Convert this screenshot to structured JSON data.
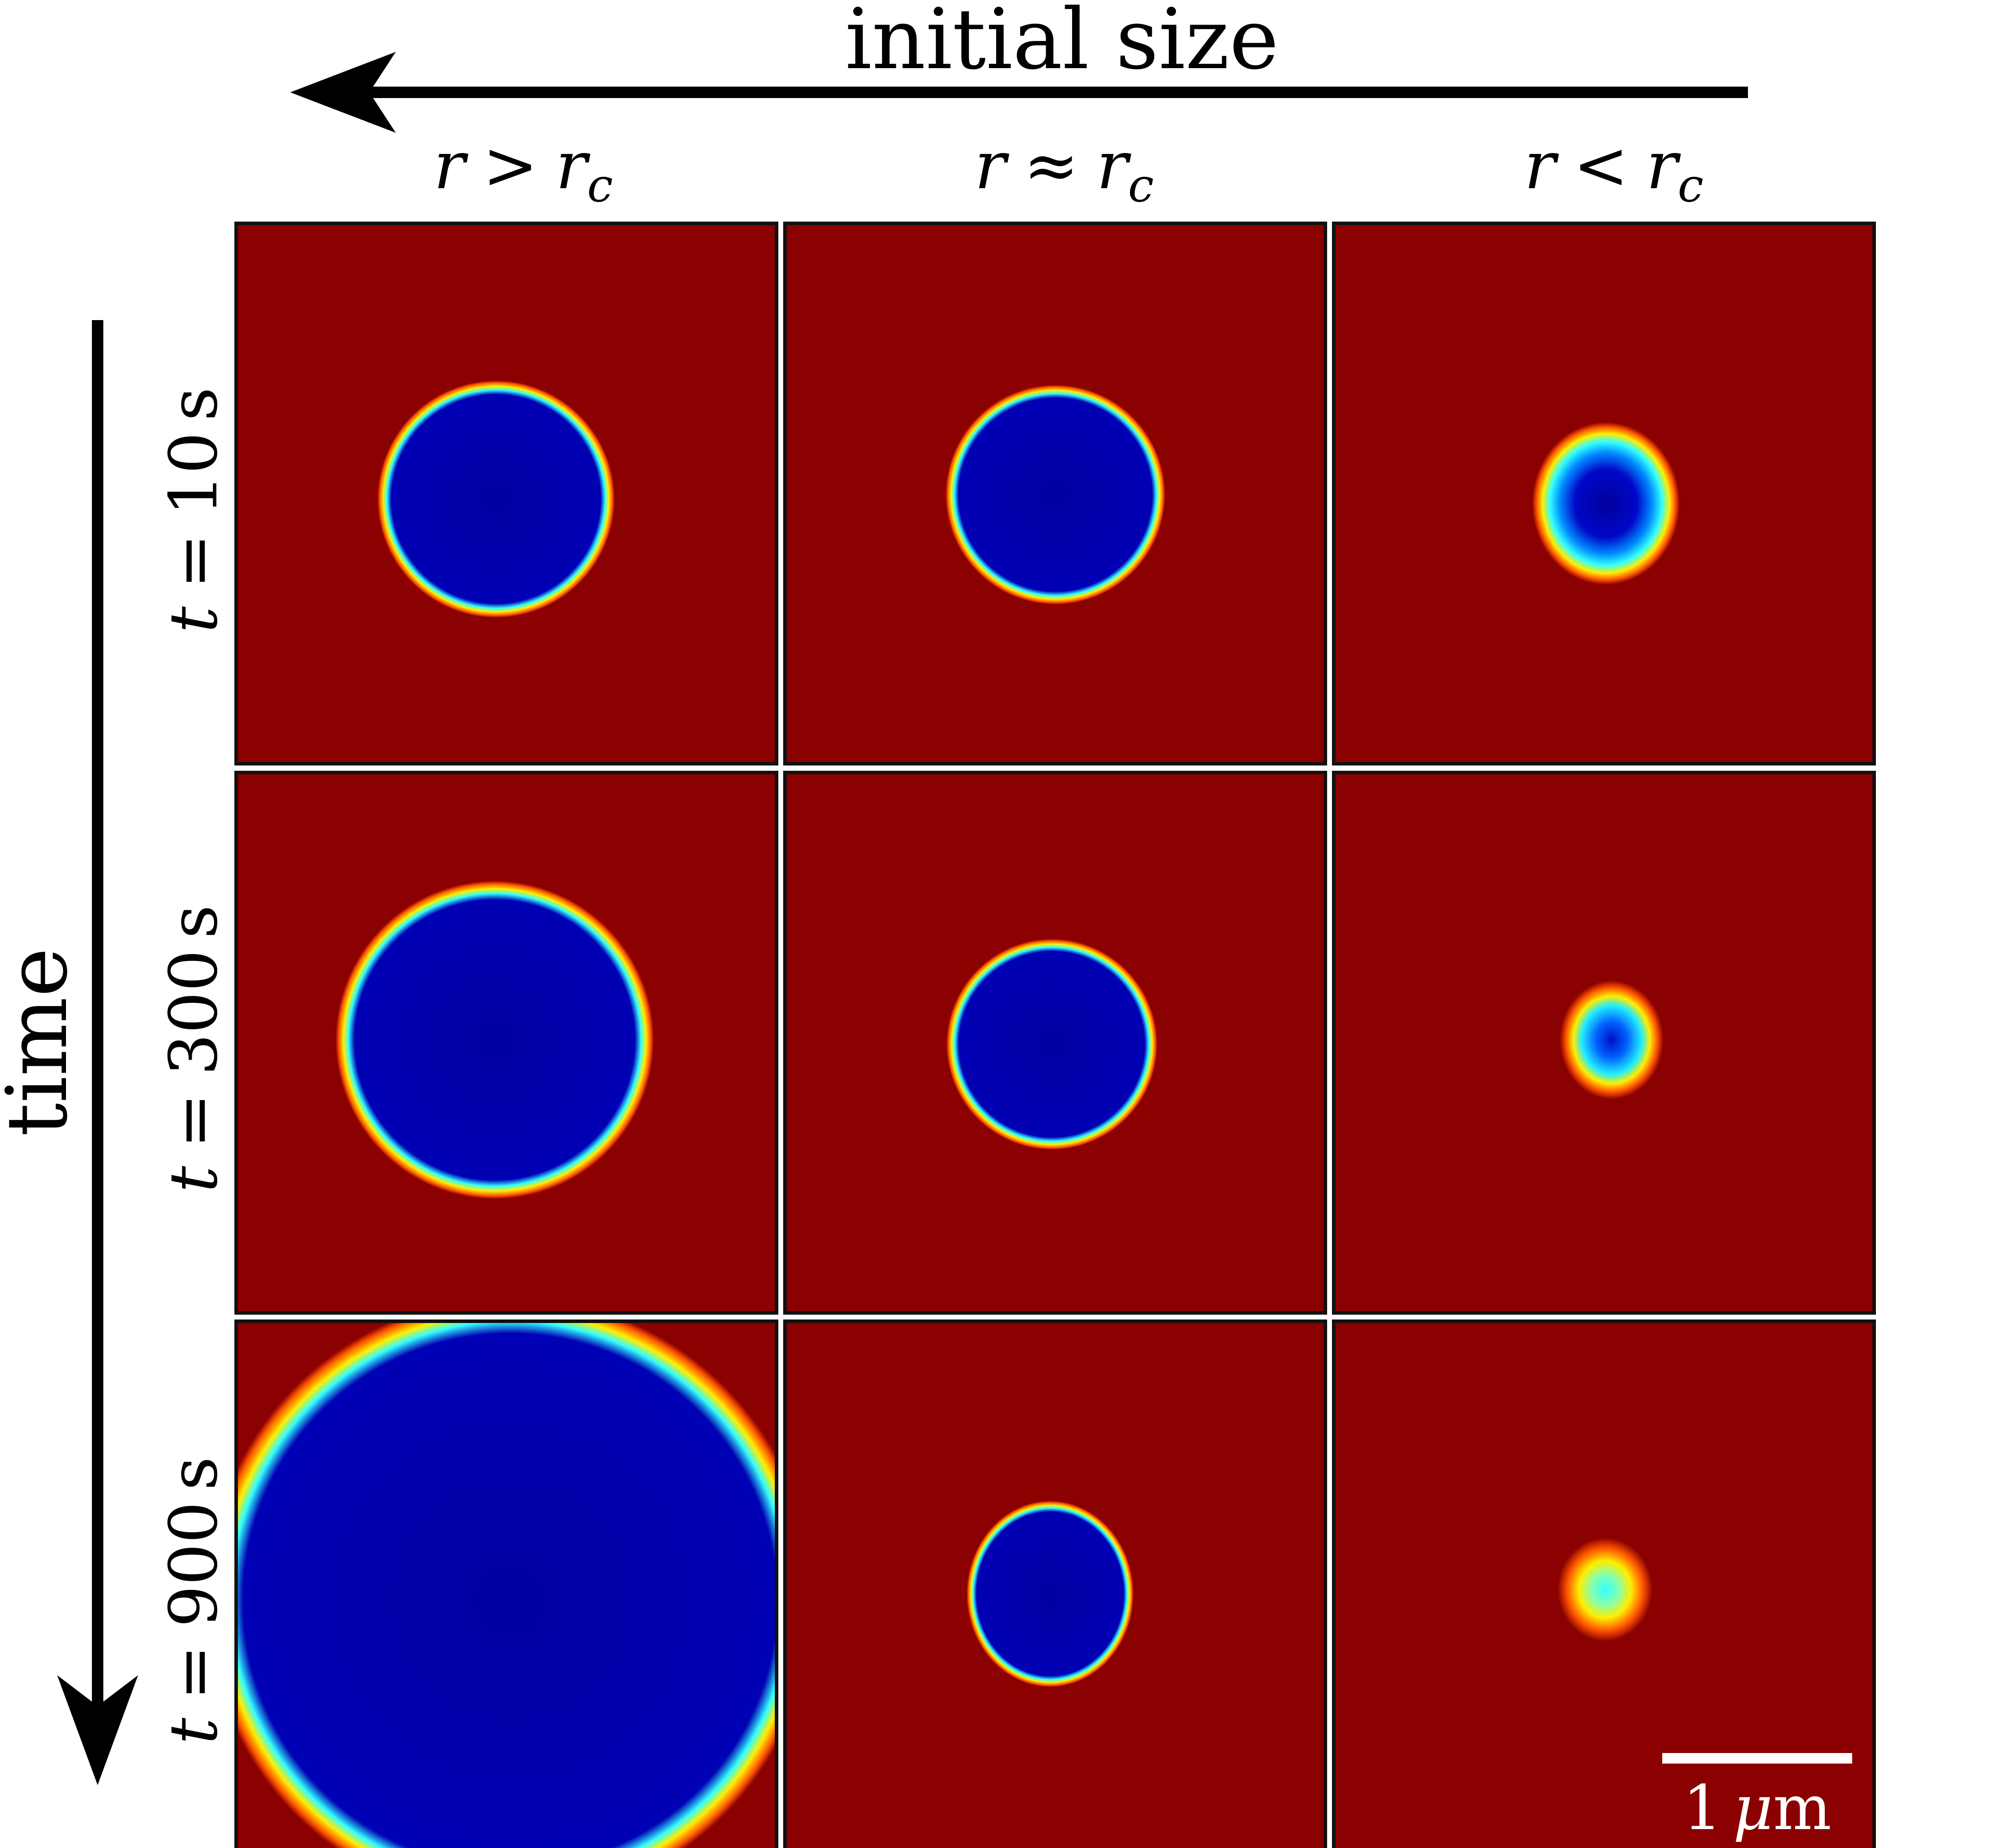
{
  "header": {
    "size_axis_label": "initial size",
    "time_axis_label": "time"
  },
  "columns": [
    {
      "r": "r",
      "rel": ">",
      "rc": "r",
      "sub": "c"
    },
    {
      "r": "r",
      "rel": "≈",
      "rc": "r",
      "sub": "c"
    },
    {
      "r": "r",
      "rel": "<",
      "rc": "r",
      "sub": "c"
    }
  ],
  "rows": [
    {
      "t": "t",
      "eq": "=",
      "value": "10",
      "unit": "s"
    },
    {
      "t": "t",
      "eq": "=",
      "value": "300",
      "unit": "s"
    },
    {
      "t": "t",
      "eq": "=",
      "value": "900",
      "unit": "s"
    }
  ],
  "scale_bar": {
    "value": "1",
    "mu": "μ",
    "m": "m"
  },
  "colors": {
    "background": "#8b0000",
    "inside": "#0000a0",
    "rim_cyan": "#33ffff",
    "rim_yellow": "#ffee00",
    "rim_orange": "#ff5500",
    "panel_border": "#111111"
  },
  "chart_data": {
    "type": "heatmap",
    "colormap": "jet",
    "grid": [
      [
        {
          "shape": "droplet",
          "core": "deep-blue"
        },
        {
          "shape": "droplet",
          "core": "deep-blue"
        },
        {
          "shape": "droplet",
          "core": "deep-blue"
        }
      ],
      [
        {
          "shape": "droplet",
          "core": "deep-blue"
        },
        {
          "shape": "droplet",
          "core": "deep-blue"
        },
        {
          "shape": "droplet",
          "core": "blue"
        }
      ],
      [
        {
          "shape": "droplet",
          "core": "deep-blue"
        },
        {
          "shape": "droplet",
          "core": "deep-blue"
        },
        {
          "shape": "droplet",
          "core": "cyan"
        }
      ]
    ]
  }
}
